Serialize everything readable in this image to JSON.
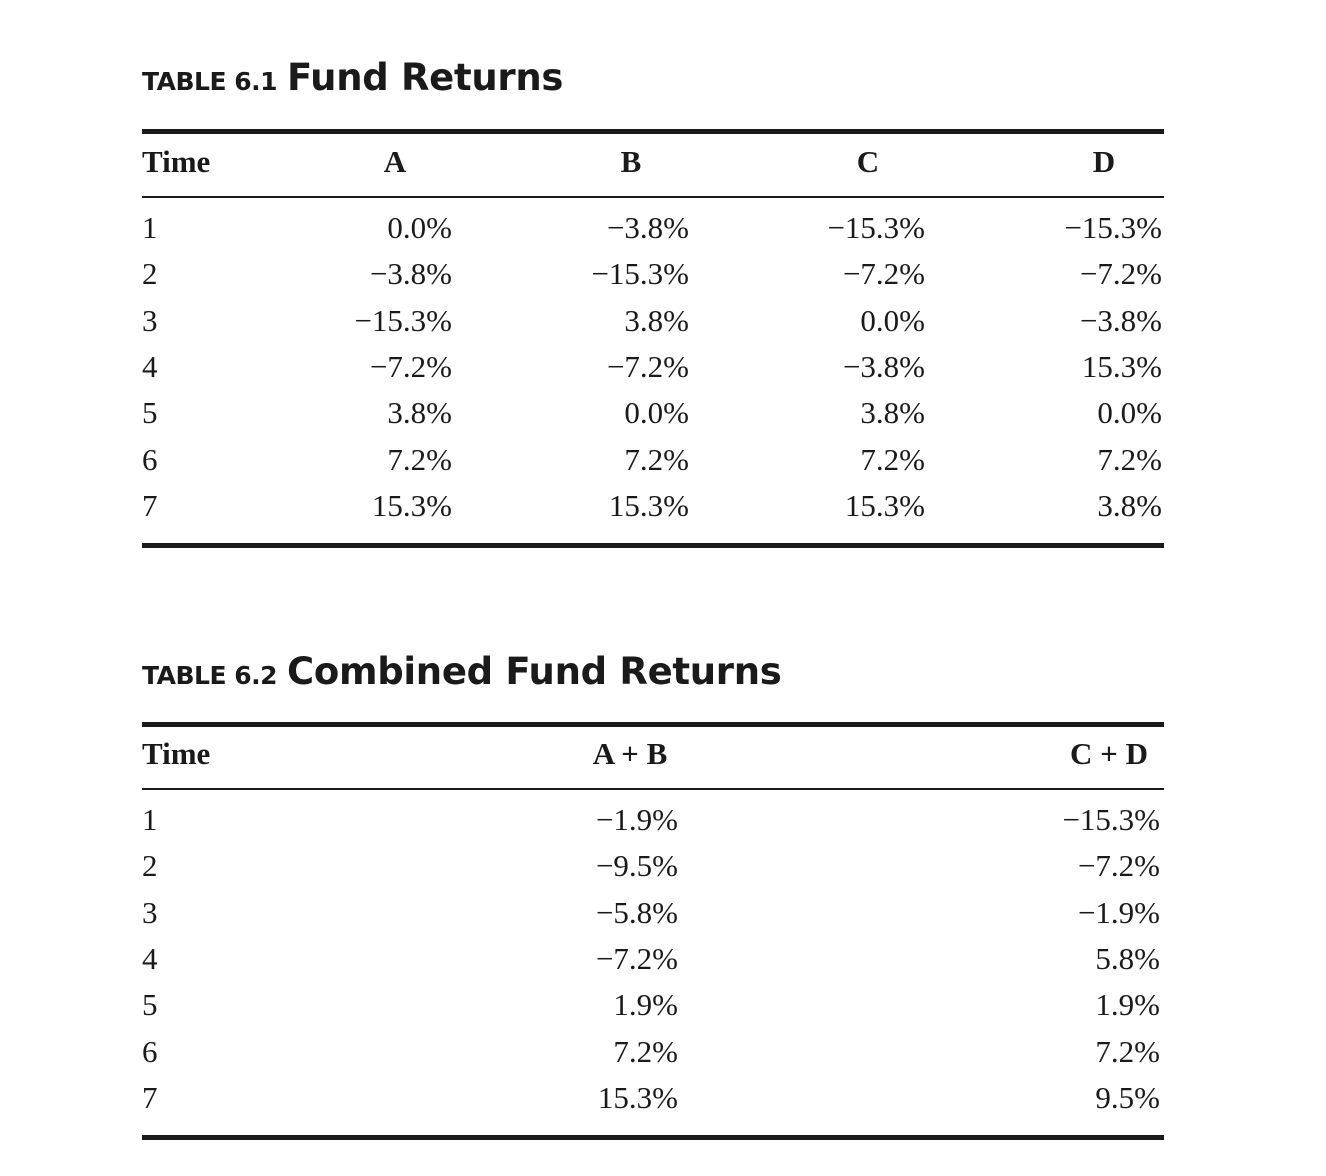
{
  "table1": {
    "label": "TABLE 6.1",
    "title": "Fund Returns",
    "headers": [
      "Time",
      "A",
      "B",
      "C",
      "D"
    ],
    "rows": [
      [
        "1",
        "0.0%",
        "−3.8%",
        "−15.3%",
        "−15.3%"
      ],
      [
        "2",
        "−3.8%",
        "−15.3%",
        "−7.2%",
        "−7.2%"
      ],
      [
        "3",
        "−15.3%",
        "3.8%",
        "0.0%",
        "−3.8%"
      ],
      [
        "4",
        "−7.2%",
        "−7.2%",
        "−3.8%",
        "15.3%"
      ],
      [
        "5",
        "3.8%",
        "0.0%",
        "3.8%",
        "0.0%"
      ],
      [
        "6",
        "7.2%",
        "7.2%",
        "7.2%",
        "7.2%"
      ],
      [
        "7",
        "15.3%",
        "15.3%",
        "15.3%",
        "3.8%"
      ]
    ]
  },
  "table2": {
    "label": "TABLE 6.2",
    "title": "Combined Fund Returns",
    "headers": [
      "Time",
      "A + B",
      "C + D"
    ],
    "rows": [
      [
        "1",
        "−1.9%",
        "−15.3%"
      ],
      [
        "2",
        "−9.5%",
        "−7.2%"
      ],
      [
        "3",
        "−5.8%",
        "−1.9%"
      ],
      [
        "4",
        "−7.2%",
        "5.8%"
      ],
      [
        "5",
        "1.9%",
        "1.9%"
      ],
      [
        "6",
        "7.2%",
        "7.2%"
      ],
      [
        "7",
        "15.3%",
        "9.5%"
      ]
    ]
  }
}
